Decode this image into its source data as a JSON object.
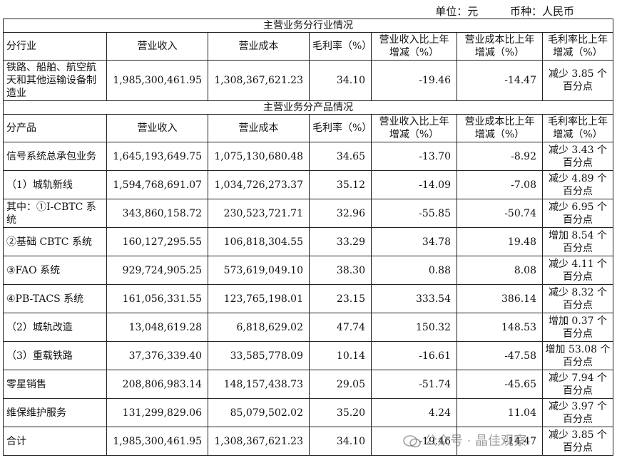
{
  "unit": {
    "label": "单位：元",
    "currency": "币种：人民币"
  },
  "industry_section": {
    "title": "主营业务分行业情况",
    "headers": [
      "分行业",
      "营业收入",
      "营业成本",
      "毛利率（%）",
      "营业收入比上年增减（%）",
      "营业成本比上年增减（%）",
      "毛利率比上年增减（%）"
    ],
    "rows": [
      {
        "name": "铁路、船舶、航空航天和其他运输设备制造业",
        "revenue": "1,985,300,461.95",
        "cost": "1,308,367,621.23",
        "margin": "34.10",
        "rev_chg": "-19.46",
        "cost_chg": "-14.47",
        "margin_chg": "减少 3.85 个百分点"
      }
    ]
  },
  "product_section": {
    "title": "主营业务分产品情况",
    "headers": [
      "分产品",
      "营业收入",
      "营业成本",
      "毛利率（%）",
      "营业收入比上年增减（%）",
      "营业成本比上年增减（%）",
      "毛利率比上年增减（%）"
    ],
    "rows": [
      {
        "name": "信号系统总承包业务",
        "revenue": "1,645,193,649.75",
        "cost": "1,075,130,680.48",
        "margin": "34.65",
        "rev_chg": "-13.70",
        "cost_chg": "-8.92",
        "margin_chg": "减少 3.43 个百分点"
      },
      {
        "name": "（1）城轨新线",
        "revenue": "1,594,768,691.07",
        "cost": "1,034,726,273.37",
        "margin": "35.12",
        "rev_chg": "-14.09",
        "cost_chg": "-7.08",
        "margin_chg": "减少 4.89 个百分点"
      },
      {
        "name": "其中：①I-CBTC 系统",
        "revenue": "343,860,158.72",
        "cost": "230,523,721.71",
        "margin": "32.96",
        "rev_chg": "-55.85",
        "cost_chg": "-50.74",
        "margin_chg": "减少 6.95 个百分点"
      },
      {
        "name": "②基础 CBTC 系统",
        "revenue": "160,127,295.55",
        "cost": "106,818,304.55",
        "margin": "33.29",
        "rev_chg": "34.78",
        "cost_chg": "19.48",
        "margin_chg": "增加 8.54 个百分点"
      },
      {
        "name": "③FAO 系统",
        "revenue": "929,724,905.25",
        "cost": "573,619,049.10",
        "margin": "38.30",
        "rev_chg": "0.88",
        "cost_chg": "8.08",
        "margin_chg": "减少 4.11 个百分点"
      },
      {
        "name": "④PB-TACS 系统",
        "revenue": "161,056,331.55",
        "cost": "123,765,198.01",
        "margin": "23.15",
        "rev_chg": "333.54",
        "cost_chg": "386.14",
        "margin_chg": "减少 8.32 个百分点"
      },
      {
        "name": "（2）城轨改造",
        "revenue": "13,048,619.28",
        "cost": "6,818,629.02",
        "margin": "47.74",
        "rev_chg": "150.32",
        "cost_chg": "148.53",
        "margin_chg": "增加 0.37 个百分点"
      },
      {
        "name": "（3）重载铁路",
        "revenue": "37,376,339.40",
        "cost": "33,585,778.09",
        "margin": "10.14",
        "rev_chg": "-16.61",
        "cost_chg": "-47.58",
        "margin_chg": "增加 53.08 个百分点"
      },
      {
        "name": "零星销售",
        "revenue": "208,806,983.14",
        "cost": "148,157,438.73",
        "margin": "29.05",
        "rev_chg": "-51.74",
        "cost_chg": "-45.65",
        "margin_chg": "减少 7.94 个百分点"
      },
      {
        "name": "维保维护服务",
        "revenue": "131,299,829.06",
        "cost": "85,079,502.02",
        "margin": "35.20",
        "rev_chg": "4.24",
        "cost_chg": "11.04",
        "margin_chg": "减少 3.97 个百分点"
      },
      {
        "name": "合计",
        "revenue": "1,985,300,461.95",
        "cost": "1,308,367,621.23",
        "margin": "34.10",
        "rev_chg": "-19.46",
        "cost_chg": "-14.47",
        "margin_chg": "减少 3.85 个百分点"
      }
    ]
  },
  "watermark": {
    "text": "公众号 · 晶佳观察"
  }
}
